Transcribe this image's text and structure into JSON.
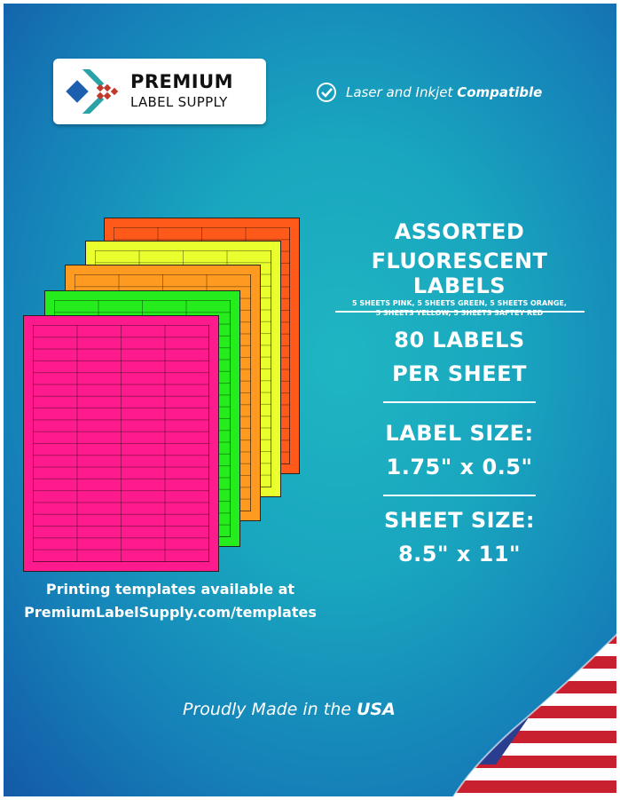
{
  "brand": {
    "line1": "PREMIUM",
    "line2": "LABEL SUPPLY"
  },
  "compat": {
    "icon": "check-circle-icon",
    "text": "Laser and Inkjet ",
    "bold": "Compatible"
  },
  "sheets": [
    {
      "color": "#ff5a1a"
    },
    {
      "color": "#eaff2e"
    },
    {
      "color": "#ff9a20"
    },
    {
      "color": "#25ec1c"
    },
    {
      "color": "#ff1b8d"
    }
  ],
  "info": {
    "title1": "ASSORTED",
    "title2": "FLUORESCENT LABELS",
    "sub1": "5 SHEETS PINK, 5 SHEETS GREEN, 5 SHEETS ORANGE,",
    "sub2": "5 SHEETS YELLOW, 5 SHEETS SAFTEY RED",
    "per1": "80 LABELS",
    "per2": "PER SHEET",
    "ls1": "LABEL SIZE:",
    "ls2": "1.75\" x 0.5\"",
    "ss1": "SHEET SIZE:",
    "ss2": "8.5\" x 11\""
  },
  "templates": {
    "line1": "Printing templates available at",
    "line2": "PremiumLabelSupply.com/templates"
  },
  "usa": {
    "text": "Proudly Made in the ",
    "bold": "USA"
  }
}
